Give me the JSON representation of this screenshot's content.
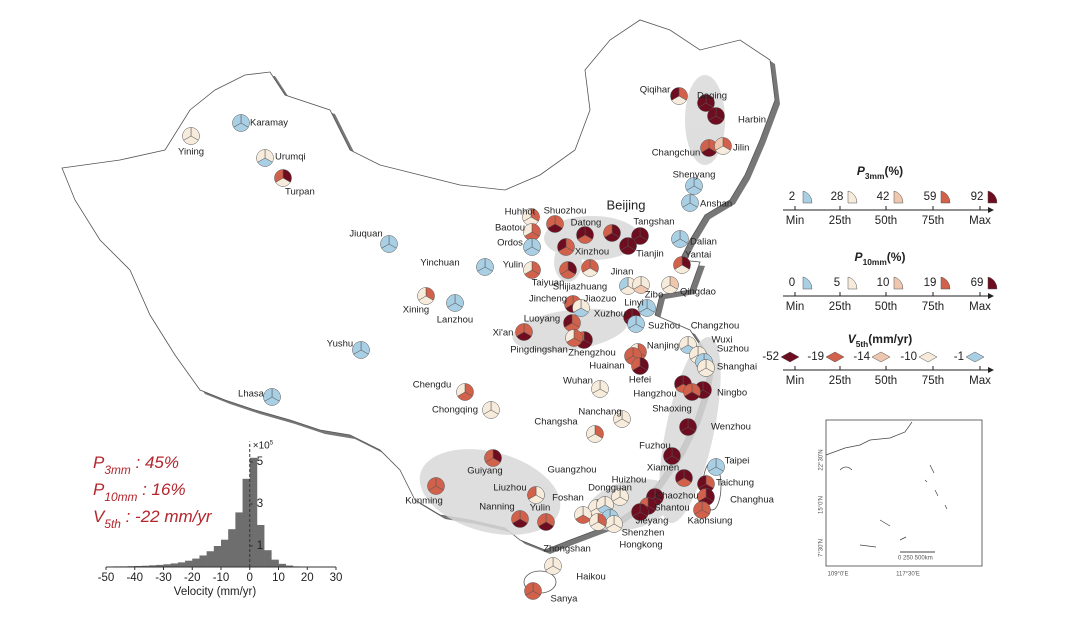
{
  "palette": {
    "b": "#a9cfe4",
    "c": "#f7ecdc",
    "p": "#efc7ae",
    "r": "#d1614b",
    "m": "#6d0d1f"
  },
  "cities": [
    {
      "name": "Karamay",
      "wedges": [
        "b",
        "b",
        "b"
      ]
    },
    {
      "name": "Yining",
      "wedges": [
        "c",
        "c",
        "c"
      ]
    },
    {
      "name": "Urumqi",
      "wedges": [
        "c",
        "b",
        "c"
      ]
    },
    {
      "name": "Turpan",
      "wedges": [
        "m",
        "c",
        "r"
      ]
    },
    {
      "name": "Jiuquan",
      "wedges": [
        "b",
        "b",
        "b"
      ]
    },
    {
      "name": "Yinchuan",
      "wedges": [
        "b",
        "b",
        "b"
      ]
    },
    {
      "name": "Xining",
      "wedges": [
        "r",
        "c",
        "c"
      ]
    },
    {
      "name": "Lanzhou",
      "wedges": [
        "b",
        "b",
        "b"
      ]
    },
    {
      "name": "Yushu",
      "wedges": [
        "b",
        "b",
        "b"
      ]
    },
    {
      "name": "Lhasa",
      "wedges": [
        "b",
        "b",
        "b"
      ]
    },
    {
      "name": "Chengdu",
      "wedges": [
        "r",
        "r",
        "c"
      ]
    },
    {
      "name": "Chongqing",
      "wedges": [
        "c",
        "c",
        "c"
      ]
    },
    {
      "name": "Qiqihar",
      "wedges": [
        "r",
        "c",
        "m"
      ]
    },
    {
      "name": "Daqing",
      "wedges": [
        "m",
        "m",
        "m"
      ]
    },
    {
      "name": "Harbin",
      "wedges": [
        "m",
        "m",
        "m"
      ]
    },
    {
      "name": "Changchun",
      "wedges": [
        "r",
        "m",
        "r"
      ]
    },
    {
      "name": "Jilin",
      "wedges": [
        "r",
        "c",
        "p"
      ]
    },
    {
      "name": "Shenyang",
      "wedges": [
        "b",
        "b",
        "b"
      ]
    },
    {
      "name": "Anshan",
      "wedges": [
        "b",
        "b",
        "b"
      ]
    },
    {
      "name": "Dalian",
      "wedges": [
        "b",
        "b",
        "b"
      ]
    },
    {
      "name": "Huhhot",
      "wedges": [
        "r",
        "c",
        "c"
      ]
    },
    {
      "name": "Baotou",
      "wedges": [
        "r",
        "r",
        "c"
      ]
    },
    {
      "name": "Ordos",
      "wedges": [
        "b",
        "b",
        "b"
      ]
    },
    {
      "name": "Shuozhou",
      "wedges": [
        "r",
        "m",
        "r"
      ]
    },
    {
      "name": "Datong",
      "wedges": [
        "m",
        "r",
        "m"
      ]
    },
    {
      "name": "Beijing",
      "wedges": [
        "m",
        "m",
        "r"
      ]
    },
    {
      "name": "Tangshan",
      "wedges": [
        "m",
        "m",
        "m"
      ]
    },
    {
      "name": "Tianjin",
      "wedges": [
        "m",
        "m",
        "m"
      ]
    },
    {
      "name": "Xinzhou",
      "wedges": [
        "r",
        "r",
        "m"
      ]
    },
    {
      "name": "Yulin",
      "wedges": [
        "r",
        "r",
        "c"
      ]
    },
    {
      "name": "Taiyuan",
      "wedges": [
        "m",
        "r",
        "r"
      ]
    },
    {
      "name": "Shijiazhuang",
      "wedges": [
        "r",
        "c",
        "r"
      ]
    },
    {
      "name": "Jinan",
      "wedges": [
        "c",
        "c",
        "b"
      ]
    },
    {
      "name": "Zibo",
      "wedges": [
        "c",
        "p",
        "c"
      ]
    },
    {
      "name": "Yantai",
      "wedges": [
        "m",
        "c",
        "r"
      ]
    },
    {
      "name": "Qingdao",
      "wedges": [
        "p",
        "c",
        "c"
      ]
    },
    {
      "name": "Jincheng",
      "wedges": [
        "r",
        "m",
        "r"
      ]
    },
    {
      "name": "Jiaozuo",
      "wedges": [
        "c",
        "b",
        "c"
      ]
    },
    {
      "name": "Linyi",
      "wedges": [
        "b",
        "b",
        "b"
      ]
    },
    {
      "name": "Luoyang",
      "wedges": [
        "r",
        "r",
        "m"
      ]
    },
    {
      "name": "Xuzhou",
      "wedges": [
        "m",
        "m",
        "m"
      ]
    },
    {
      "name": "Xi'an",
      "wedges": [
        "r",
        "m",
        "r"
      ]
    },
    {
      "name": "Zhengzhou",
      "wedges": [
        "m",
        "m",
        "r"
      ]
    },
    {
      "name": "Pingdingshan",
      "wedges": [
        "r",
        "r",
        "c"
      ]
    },
    {
      "name": "Suzhou",
      "wedges": [
        "b",
        "b",
        "b"
      ]
    },
    {
      "name": "Changzhou",
      "wedges": [
        "c",
        "b",
        "c"
      ]
    },
    {
      "name": "Wuxi",
      "wedges": [
        "c",
        "c",
        "c"
      ]
    },
    {
      "name": "Suzhou",
      "wedges": [
        "b",
        "c",
        "b"
      ]
    },
    {
      "name": "Shanghai",
      "wedges": [
        "c",
        "c",
        "c"
      ]
    },
    {
      "name": "Nanjing",
      "wedges": [
        "r",
        "r",
        "c"
      ]
    },
    {
      "name": "Huainan",
      "wedges": [
        "r",
        "r",
        "r"
      ]
    },
    {
      "name": "Hefei",
      "wedges": [
        "m",
        "m",
        "r"
      ]
    },
    {
      "name": "Wuhan",
      "wedges": [
        "c",
        "c",
        "c"
      ]
    },
    {
      "name": "Hangzhou",
      "wedges": [
        "m",
        "r",
        "m"
      ]
    },
    {
      "name": "Ningbo",
      "wedges": [
        "m",
        "m",
        "m"
      ]
    },
    {
      "name": "Shaoxing",
      "wedges": [
        "r",
        "m",
        "r"
      ]
    },
    {
      "name": "Nanchang",
      "wedges": [
        "c",
        "c",
        "c"
      ]
    },
    {
      "name": "Changsha",
      "wedges": [
        "r",
        "c",
        "c"
      ]
    },
    {
      "name": "Wenzhou",
      "wedges": [
        "m",
        "m",
        "m"
      ]
    },
    {
      "name": "Fuzhou",
      "wedges": [
        "m",
        "m",
        "m"
      ]
    },
    {
      "name": "Xiamen",
      "wedges": [
        "m",
        "r",
        "m"
      ]
    },
    {
      "name": "Taipei",
      "wedges": [
        "b",
        "b",
        "b"
      ]
    },
    {
      "name": "Taichung",
      "wedges": [
        "r",
        "m",
        "m"
      ]
    },
    {
      "name": "Changhua",
      "wedges": [
        "m",
        "m",
        "r"
      ]
    },
    {
      "name": "Kaohsiung",
      "wedges": [
        "r",
        "r",
        "r"
      ]
    },
    {
      "name": "Guiyang",
      "wedges": [
        "m",
        "r",
        "r"
      ]
    },
    {
      "name": "Kunming",
      "wedges": [
        "r",
        "r",
        "r"
      ]
    },
    {
      "name": "Liuzhou",
      "wedges": [
        "c",
        "c",
        "r"
      ]
    },
    {
      "name": "Nanning",
      "wedges": [
        "r",
        "m",
        "r"
      ]
    },
    {
      "name": "Yulin",
      "wedges": [
        "r",
        "m",
        "r"
      ]
    },
    {
      "name": "Guangzhou",
      "wedges": [
        "r",
        "c",
        "c"
      ]
    },
    {
      "name": "Huizhou",
      "wedges": [
        "c",
        "c",
        "c"
      ]
    },
    {
      "name": "Dongguan",
      "wedges": [
        "c",
        "b",
        "c"
      ]
    },
    {
      "name": "Foshan",
      "wedges": [
        "c",
        "r",
        "c"
      ]
    },
    {
      "name": "Chaozhou",
      "wedges": [
        "m",
        "m",
        "m"
      ]
    },
    {
      "name": "Shantou",
      "wedges": [
        "m",
        "m",
        "r"
      ]
    },
    {
      "name": "Jieyang",
      "wedges": [
        "m",
        "m",
        "m"
      ]
    },
    {
      "name": "Shenzhen",
      "wedges": [
        "b",
        "c",
        "b"
      ]
    },
    {
      "name": "Hongkong",
      "wedges": [
        "c",
        "c",
        "c"
      ]
    },
    {
      "name": "Zhongshan",
      "wedges": [
        "r",
        "c",
        "c"
      ]
    },
    {
      "name": "Haikou",
      "wedges": [
        "c",
        "c",
        "c"
      ]
    },
    {
      "name": "Sanya",
      "wedges": [
        "r",
        "r",
        "r"
      ]
    }
  ],
  "legend": [
    {
      "symbol": "P",
      "subscript": "3mm",
      "unit": "(%)",
      "values": [
        2,
        28,
        42,
        59,
        92
      ],
      "colors": [
        "b",
        "c",
        "p",
        "r",
        "m"
      ]
    },
    {
      "symbol": "P",
      "subscript": "10mm",
      "unit": "(%)",
      "values": [
        0,
        5,
        10,
        19,
        69
      ],
      "colors": [
        "b",
        "c",
        "p",
        "r",
        "m"
      ]
    },
    {
      "symbol": "V",
      "subscript": "5th",
      "unit": "(mm/yr)",
      "values": [
        -52,
        -19,
        -14,
        -10,
        -1
      ],
      "colors": [
        "m",
        "r",
        "p",
        "c",
        "b"
      ]
    }
  ],
  "legend_ticks": [
    "Min",
    "25th",
    "50th",
    "75th",
    "Max"
  ],
  "stats": [
    {
      "symbol": "P",
      "subscript": "3mm",
      "text": " : 45%"
    },
    {
      "symbol": "P",
      "subscript": "10mm",
      "text": " : 16%"
    },
    {
      "symbol": "V",
      "subscript": "5th",
      "text": " : -22 mm/yr"
    }
  ],
  "inset": {
    "lat_labels": [
      "22°30'N",
      "15°0'N",
      "7°30'N"
    ],
    "lon_labels": [
      "109°0'E",
      "117°30'E"
    ],
    "scale": "0  250  500km"
  },
  "chart_data": {
    "type": "histogram",
    "xlabel": "Velocity (mm/yr)",
    "y_scale_label": "×10",
    "y_scale_exponent": "5",
    "bins": [
      -50,
      -47.5,
      -45,
      -42.5,
      -40,
      -37.5,
      -35,
      -32.5,
      -30,
      -27.5,
      -25,
      -22.5,
      -20,
      -17.5,
      -15,
      -12.5,
      -10,
      -7.5,
      -5,
      -2.5,
      0,
      2.5,
      5,
      7.5,
      10,
      12.5,
      15,
      17.5,
      20,
      22.5,
      25,
      27.5,
      30
    ],
    "values": [
      0.02,
      0.03,
      0.03,
      0.04,
      0.05,
      0.06,
      0.08,
      0.1,
      0.13,
      0.17,
      0.22,
      0.3,
      0.4,
      0.55,
      0.75,
      1.0,
      1.3,
      1.8,
      2.6,
      4.2,
      5.2,
      2.0,
      0.8,
      0.35,
      0.15,
      0.07,
      0.03,
      0.02,
      0.01,
      0.01,
      0,
      0
    ],
    "color": "#6e6e6e",
    "xlim": [
      -50,
      30
    ],
    "xticks": [
      -50,
      -40,
      -30,
      -20,
      -10,
      0,
      10,
      20,
      30
    ],
    "ylim": [
      0,
      5.5
    ],
    "yticks": [
      1,
      3,
      5
    ]
  }
}
